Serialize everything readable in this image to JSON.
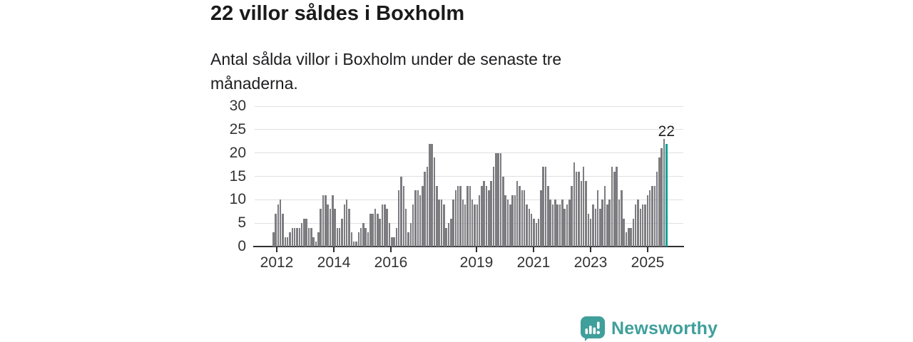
{
  "header": {
    "title": "22 villor såldes i Boxholm",
    "subtitle": "Antal sålda villor i Boxholm under de senaste tre månaderna."
  },
  "chart_data": {
    "type": "bar",
    "title": "22 villor såldes i Boxholm",
    "subtitle": "Antal sålda villor i Boxholm under de senaste tre månaderna.",
    "unit": "sålda villor (rullande 3 månader)",
    "frequency": "monthly",
    "x_range_years": [
      2011.9,
      2025.8
    ],
    "ylim": [
      0,
      30
    ],
    "yticks": [
      0,
      5,
      10,
      15,
      20,
      25,
      30
    ],
    "xticks": [
      2012,
      2014,
      2016,
      2019,
      2021,
      2023,
      2025
    ],
    "grid": true,
    "legend": false,
    "values": [
      3,
      7,
      9,
      10,
      7,
      2,
      2,
      3,
      4,
      4,
      4,
      4,
      5,
      6,
      6,
      4,
      4,
      2,
      1,
      3,
      8,
      11,
      11,
      9,
      8,
      11,
      8,
      4,
      4,
      6,
      9,
      10,
      8,
      3,
      1,
      1,
      3,
      4,
      5,
      4,
      3,
      7,
      7,
      8,
      7,
      6,
      9,
      9,
      8,
      5,
      2,
      2,
      4,
      12,
      15,
      13,
      8,
      3,
      5,
      9,
      12,
      12,
      11,
      13,
      16,
      17,
      22,
      22,
      19,
      13,
      10,
      10,
      9,
      4,
      5,
      6,
      10,
      12,
      13,
      13,
      10,
      9,
      13,
      13,
      10,
      9,
      9,
      11,
      13,
      14,
      13,
      12,
      14,
      17,
      20,
      20,
      20,
      15,
      11,
      10,
      9,
      11,
      11,
      14,
      13,
      12,
      12,
      9,
      8,
      7,
      6,
      5,
      6,
      12,
      17,
      17,
      13,
      10,
      9,
      10,
      9,
      9,
      10,
      8,
      9,
      10,
      13,
      18,
      16,
      16,
      14,
      17,
      14,
      7,
      6,
      9,
      8,
      12,
      8,
      10,
      13,
      9,
      10,
      17,
      16,
      17,
      10,
      12,
      6,
      3,
      4,
      4,
      6,
      9,
      10,
      8,
      9,
      9,
      11,
      12,
      13,
      13,
      16,
      19,
      21,
      23,
      22
    ],
    "highlight": "last-bar",
    "annotation": {
      "text": "22",
      "target": "last-bar"
    },
    "colors": {
      "bar": "#7c7c81",
      "highlight": "#0aa296",
      "grid": "#e0e0e4",
      "axis": "#2f2f33",
      "text": "#1a1a1a"
    }
  },
  "footer": {
    "brand": "Newsworthy",
    "brand_color": "#3f9f9b"
  }
}
